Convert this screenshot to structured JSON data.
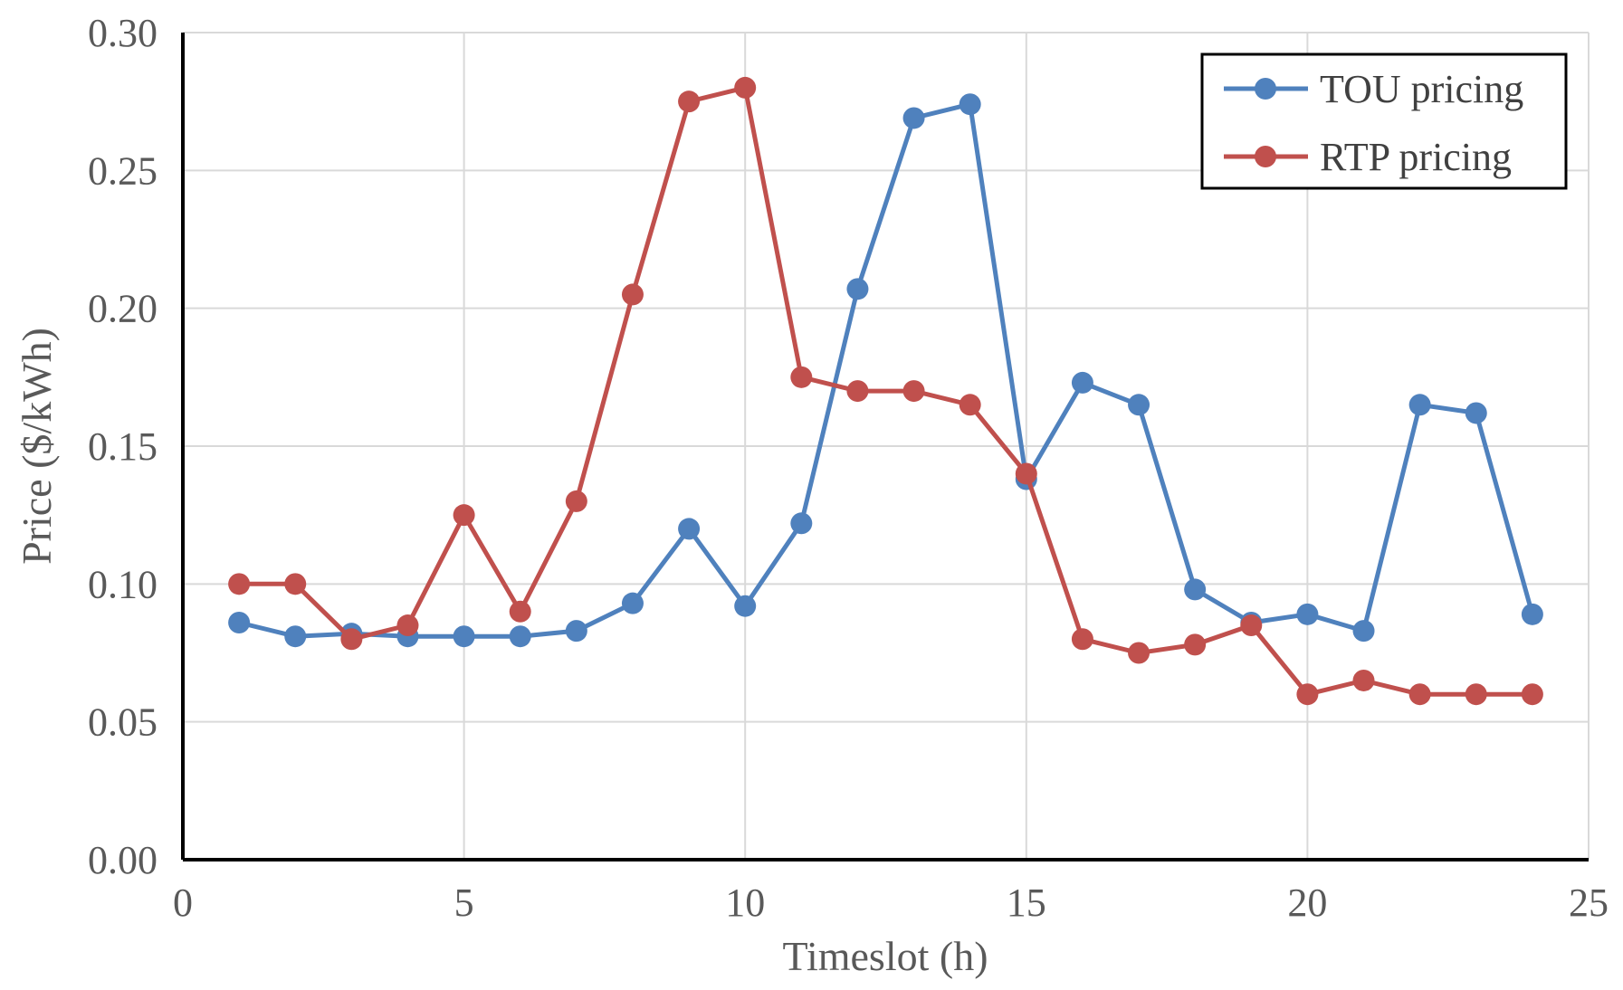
{
  "chart_data": {
    "type": "line",
    "title": "",
    "xlabel": "Timeslot (h)",
    "ylabel": "Price ($/kWh)",
    "xlim": [
      0,
      25
    ],
    "ylim": [
      0,
      0.3
    ],
    "x_ticks": [
      "0",
      "5",
      "10",
      "15",
      "20",
      "25"
    ],
    "y_ticks": [
      "0.00",
      "0.05",
      "0.10",
      "0.15",
      "0.20",
      "0.25",
      "0.30"
    ],
    "grid": true,
    "legend_position": "top-right",
    "x": [
      1,
      2,
      3,
      4,
      5,
      6,
      7,
      8,
      9,
      10,
      11,
      12,
      13,
      14,
      15,
      16,
      17,
      18,
      19,
      20,
      21,
      22,
      23,
      24
    ],
    "series": [
      {
        "name": "TOU pricing",
        "color": "#4f81bd",
        "values": [
          0.086,
          0.081,
          0.082,
          0.081,
          0.081,
          0.081,
          0.083,
          0.093,
          0.12,
          0.092,
          0.122,
          0.207,
          0.269,
          0.274,
          0.138,
          0.173,
          0.165,
          0.098,
          0.086,
          0.089,
          0.083,
          0.165,
          0.162,
          0.089
        ]
      },
      {
        "name": "RTP pricing",
        "color": "#c0504d",
        "values": [
          0.1,
          0.1,
          0.08,
          0.085,
          0.125,
          0.09,
          0.13,
          0.205,
          0.275,
          0.28,
          0.175,
          0.17,
          0.17,
          0.165,
          0.14,
          0.08,
          0.075,
          0.078,
          0.085,
          0.06,
          0.065,
          0.06,
          0.06,
          0.06
        ]
      }
    ]
  }
}
